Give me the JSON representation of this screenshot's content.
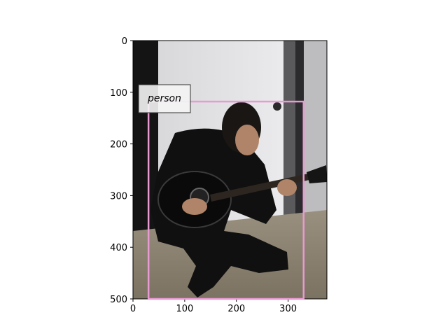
{
  "image": {
    "width": 375,
    "height": 500,
    "description_colors": {
      "wall": "#e8e8ea",
      "door_shadow": "#1a1a1a",
      "suit": "#111111",
      "floor": "#8c8170"
    }
  },
  "axes": {
    "x_ticks": [
      0,
      100,
      200,
      300
    ],
    "y_ticks": [
      0,
      100,
      200,
      300,
      400,
      500
    ],
    "xlim": [
      0,
      375
    ],
    "ylim": [
      500,
      0
    ]
  },
  "detections": [
    {
      "label": "person",
      "box": {
        "x0": 30,
        "y0": 118,
        "x1": 330,
        "y1": 500
      },
      "color": "#e89ad2"
    }
  ]
}
